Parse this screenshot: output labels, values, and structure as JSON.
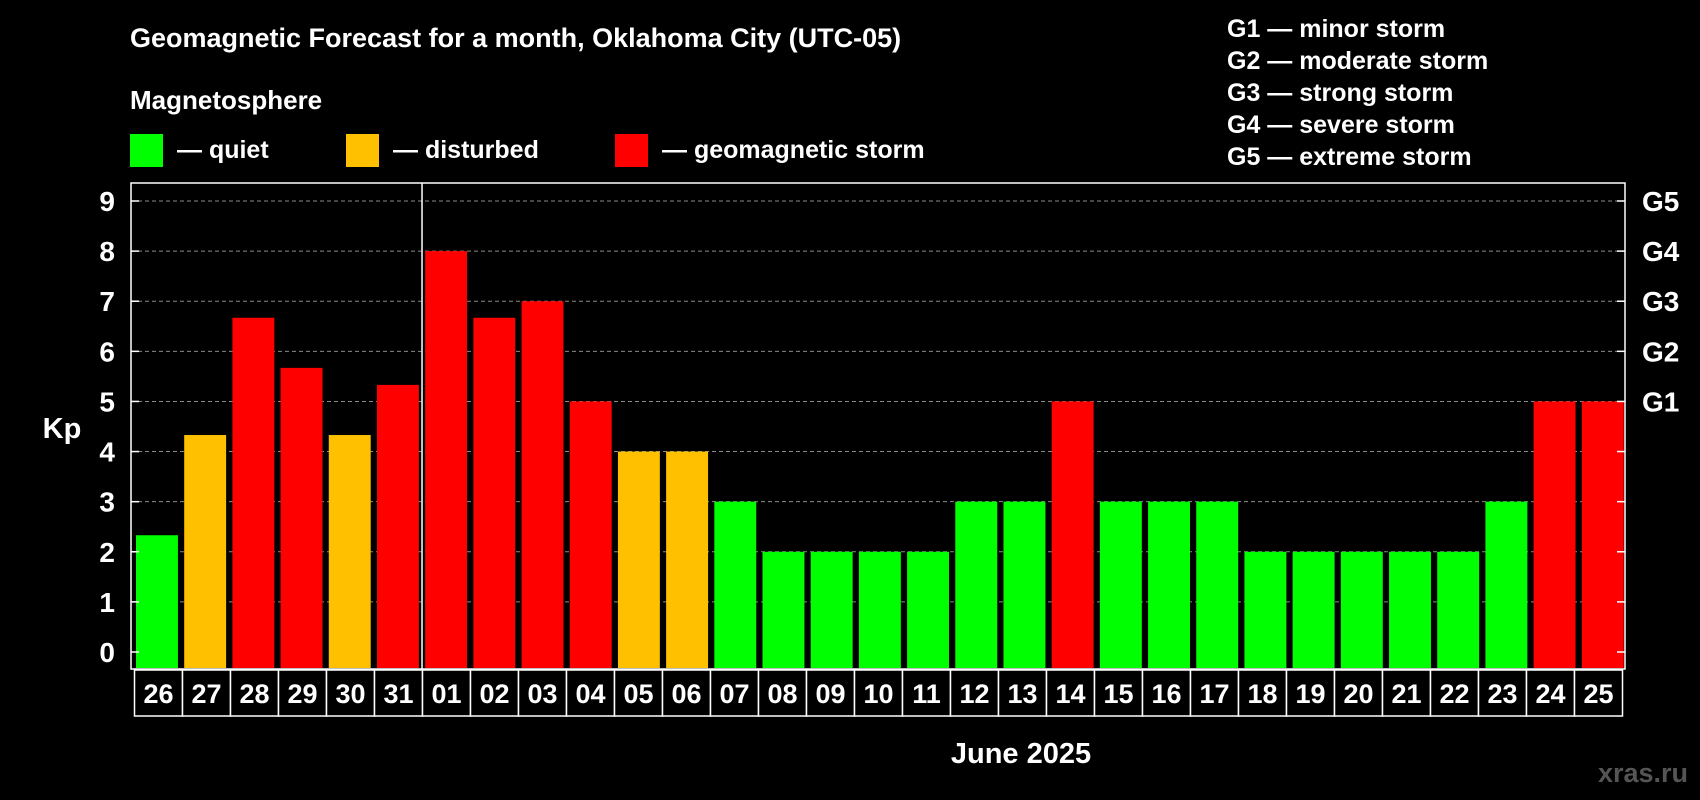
{
  "colors": {
    "quiet": "#00FF00",
    "disturbed": "#FFC000",
    "storm": "#FF0000",
    "background": "#000000",
    "foreground": "#FFFFFF"
  },
  "watermark": "xras.ru",
  "chart_data": {
    "type": "bar",
    "title": "Geomagnetic Forecast for a month, Oklahoma City (UTC-05)",
    "legend_title": "Magnetosphere",
    "legend": [
      {
        "label": "— quiet",
        "color_key": "quiet"
      },
      {
        "label": "— disturbed",
        "color_key": "disturbed"
      },
      {
        "label": "— geomagnetic storm",
        "color_key": "storm"
      }
    ],
    "g_scale_legend": [
      "G1 — minor storm",
      "G2 — moderate storm",
      "G3 — strong storm",
      "G4 — severe storm",
      "G5 — extreme storm"
    ],
    "ylabel": "Kp",
    "xlabel": "June 2025",
    "ylim": [
      0,
      9
    ],
    "y_ticks": [
      "0",
      "1",
      "2",
      "3",
      "4",
      "5",
      "6",
      "7",
      "8",
      "9"
    ],
    "y_right_labels": [
      {
        "value": 5,
        "label": "G1"
      },
      {
        "value": 6,
        "label": "G2"
      },
      {
        "value": 7,
        "label": "G3"
      },
      {
        "value": 8,
        "label": "G4"
      },
      {
        "value": 9,
        "label": "G5"
      }
    ],
    "month_divider_after": "31",
    "categories": [
      "26",
      "27",
      "28",
      "29",
      "30",
      "31",
      "01",
      "02",
      "03",
      "04",
      "05",
      "06",
      "07",
      "08",
      "09",
      "10",
      "11",
      "12",
      "13",
      "14",
      "15",
      "16",
      "17",
      "18",
      "19",
      "20",
      "21",
      "22",
      "23",
      "24",
      "25"
    ],
    "values": [
      2.33,
      4.33,
      6.67,
      5.67,
      4.33,
      5.33,
      8,
      6.67,
      7,
      5,
      4,
      4,
      3,
      2,
      2,
      2,
      2,
      3,
      3,
      5,
      3,
      3,
      3,
      2,
      2,
      2,
      2,
      2,
      3,
      5,
      5
    ],
    "levels": [
      "quiet",
      "disturbed",
      "storm",
      "storm",
      "disturbed",
      "storm",
      "storm",
      "storm",
      "storm",
      "storm",
      "disturbed",
      "disturbed",
      "quiet",
      "quiet",
      "quiet",
      "quiet",
      "quiet",
      "quiet",
      "quiet",
      "storm",
      "quiet",
      "quiet",
      "quiet",
      "quiet",
      "quiet",
      "quiet",
      "quiet",
      "quiet",
      "quiet",
      "storm",
      "storm"
    ]
  }
}
